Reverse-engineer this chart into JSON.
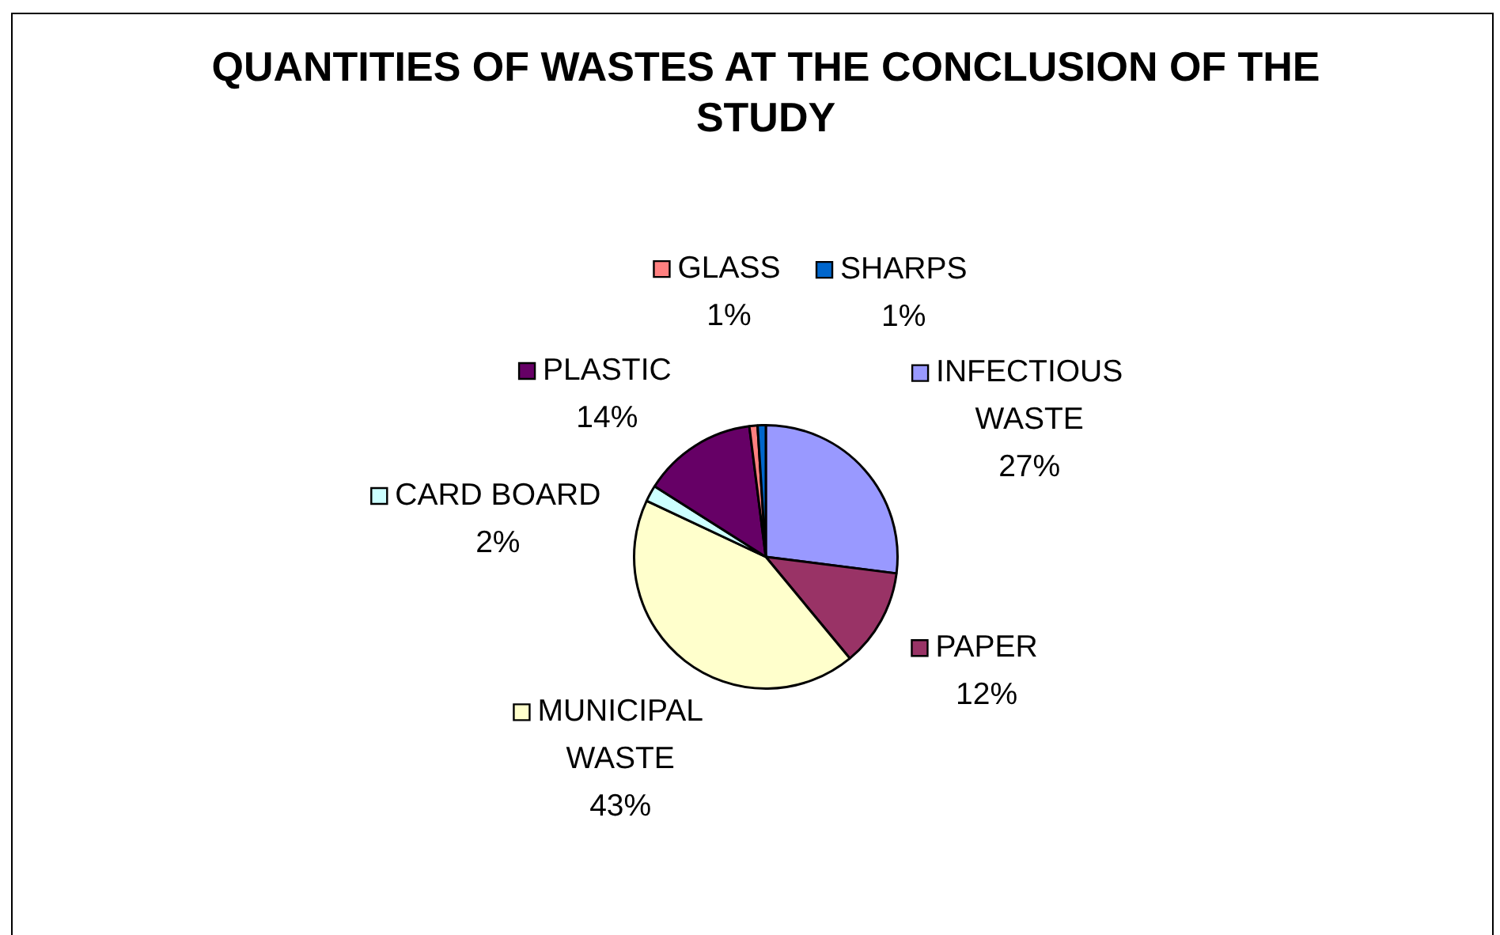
{
  "chart_data": {
    "type": "pie",
    "title": "QUANTITIES OF WASTES AT THE CONCLUSION OF THE STUDY",
    "categories": [
      "INFECTIOUS WASTE",
      "PAPER",
      "MUNICIPAL WASTE",
      "CARD BOARD",
      "PLASTIC",
      "GLASS",
      "SHARPS"
    ],
    "values": [
      27,
      12,
      43,
      2,
      14,
      1,
      1
    ],
    "colors": [
      "#9999ff",
      "#993366",
      "#ffffcc",
      "#ccffff",
      "#660066",
      "#ff8080",
      "#0066cc"
    ],
    "value_labels": [
      "27%",
      "12%",
      "43%",
      "2%",
      "14%",
      "1%",
      "1%"
    ],
    "legend": "center"
  }
}
